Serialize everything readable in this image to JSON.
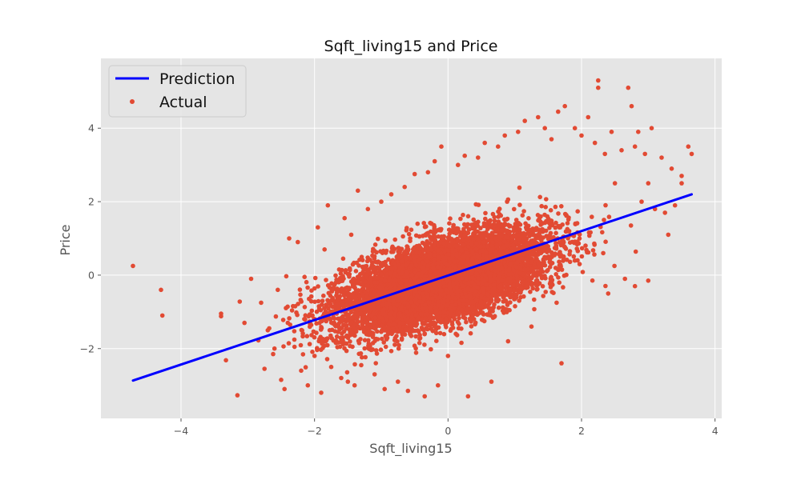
{
  "chart_data": {
    "type": "scatter",
    "title": "Sqft_living15 and Price",
    "xlabel": "Sqft_living15",
    "ylabel": "Price",
    "xlim": [
      -5.2,
      4.1
    ],
    "ylim": [
      -3.9,
      5.9
    ],
    "x_ticks": [
      {
        "value": -4,
        "label": "−4"
      },
      {
        "value": -2,
        "label": "−2"
      },
      {
        "value": 0,
        "label": "0"
      },
      {
        "value": 2,
        "label": "2"
      },
      {
        "value": 4,
        "label": "4"
      }
    ],
    "y_ticks": [
      {
        "value": -2,
        "label": "−2"
      },
      {
        "value": 0,
        "label": "0"
      },
      {
        "value": 2,
        "label": "2"
      },
      {
        "value": 4,
        "label": "4"
      }
    ],
    "grid": true,
    "legend_position": "top-left",
    "series": [
      {
        "name": "Prediction",
        "kind": "line",
        "color": "#0000ff",
        "x": [
          -4.72,
          3.65
        ],
        "y": [
          -2.87,
          2.2
        ]
      },
      {
        "name": "Actual",
        "kind": "scatter",
        "color": "#e24a33",
        "points": [
          [
            -4.72,
            0.25
          ],
          [
            -4.3,
            -0.4
          ],
          [
            -4.28,
            -1.1
          ],
          [
            -3.4,
            -1.05
          ],
          [
            -3.4,
            -1.12
          ],
          [
            -3.12,
            -0.72
          ],
          [
            -3.05,
            -1.3
          ],
          [
            -2.95,
            -0.1
          ],
          [
            -2.8,
            -0.75
          ],
          [
            -2.75,
            -2.55
          ],
          [
            -2.7,
            -1.5
          ],
          [
            -2.62,
            -2.15
          ],
          [
            -2.55,
            -0.4
          ],
          [
            -2.5,
            -2.85
          ],
          [
            -2.45,
            -3.1
          ],
          [
            -2.4,
            -1.3
          ],
          [
            -2.38,
            1.0
          ],
          [
            -2.3,
            -1.95
          ],
          [
            -2.25,
            0.9
          ],
          [
            -2.2,
            -2.6
          ],
          [
            -2.15,
            -0.05
          ],
          [
            -2.1,
            -3.0
          ],
          [
            -2.0,
            -2.2
          ],
          [
            -1.95,
            1.3
          ],
          [
            -1.9,
            -3.2
          ],
          [
            -1.85,
            0.7
          ],
          [
            -1.8,
            1.9
          ],
          [
            -1.75,
            -2.5
          ],
          [
            -1.6,
            -2.8
          ],
          [
            -1.55,
            1.55
          ],
          [
            -1.5,
            -2.9
          ],
          [
            -1.45,
            1.1
          ],
          [
            -1.4,
            -3.0
          ],
          [
            -1.35,
            2.3
          ],
          [
            -1.3,
            -2.45
          ],
          [
            -1.2,
            1.8
          ],
          [
            -1.1,
            -2.7
          ],
          [
            -1.0,
            2.0
          ],
          [
            -0.95,
            -3.1
          ],
          [
            -0.85,
            2.2
          ],
          [
            -0.75,
            -2.9
          ],
          [
            -0.65,
            2.4
          ],
          [
            -0.6,
            -3.15
          ],
          [
            -0.5,
            2.75
          ],
          [
            -0.35,
            -3.3
          ],
          [
            -0.3,
            2.8
          ],
          [
            -0.2,
            3.1
          ],
          [
            -0.15,
            -3.0
          ],
          [
            -0.1,
            3.5
          ],
          [
            0.0,
            -2.2
          ],
          [
            0.15,
            3.0
          ],
          [
            0.25,
            3.25
          ],
          [
            0.3,
            -3.3
          ],
          [
            0.45,
            3.2
          ],
          [
            0.55,
            3.6
          ],
          [
            0.65,
            -2.9
          ],
          [
            0.75,
            3.5
          ],
          [
            0.85,
            3.8
          ],
          [
            0.9,
            -1.8
          ],
          [
            1.05,
            3.9
          ],
          [
            1.15,
            4.2
          ],
          [
            1.25,
            -1.4
          ],
          [
            1.35,
            4.3
          ],
          [
            1.45,
            4.0
          ],
          [
            1.55,
            3.7
          ],
          [
            1.65,
            4.45
          ],
          [
            1.7,
            -2.4
          ],
          [
            1.75,
            4.6
          ],
          [
            1.9,
            4.0
          ],
          [
            2.0,
            3.8
          ],
          [
            2.1,
            4.3
          ],
          [
            2.2,
            3.6
          ],
          [
            2.25,
            5.3
          ],
          [
            2.25,
            5.1
          ],
          [
            2.35,
            3.3
          ],
          [
            2.45,
            3.9
          ],
          [
            2.5,
            2.5
          ],
          [
            2.6,
            3.4
          ],
          [
            2.65,
            -0.1
          ],
          [
            2.7,
            5.1
          ],
          [
            2.75,
            4.6
          ],
          [
            2.8,
            3.5
          ],
          [
            2.85,
            3.9
          ],
          [
            2.9,
            2.0
          ],
          [
            2.95,
            3.3
          ],
          [
            3.0,
            2.5
          ],
          [
            3.05,
            4.0
          ],
          [
            3.1,
            1.8
          ],
          [
            3.2,
            3.2
          ],
          [
            3.25,
            1.7
          ],
          [
            3.35,
            2.9
          ],
          [
            3.5,
            2.7
          ],
          [
            3.5,
            2.5
          ],
          [
            3.6,
            3.5
          ],
          [
            3.65,
            3.3
          ],
          [
            3.0,
            -0.15
          ],
          [
            2.8,
            -0.3
          ],
          [
            3.3,
            1.1
          ],
          [
            3.4,
            1.9
          ],
          [
            2.4,
            -0.5
          ]
        ],
        "cloud": {
          "center": [
            -0.1,
            -0.15
          ],
          "sd_x": 0.78,
          "sd_y": 0.68,
          "correlation": 0.6,
          "count": 8000
        }
      }
    ]
  }
}
